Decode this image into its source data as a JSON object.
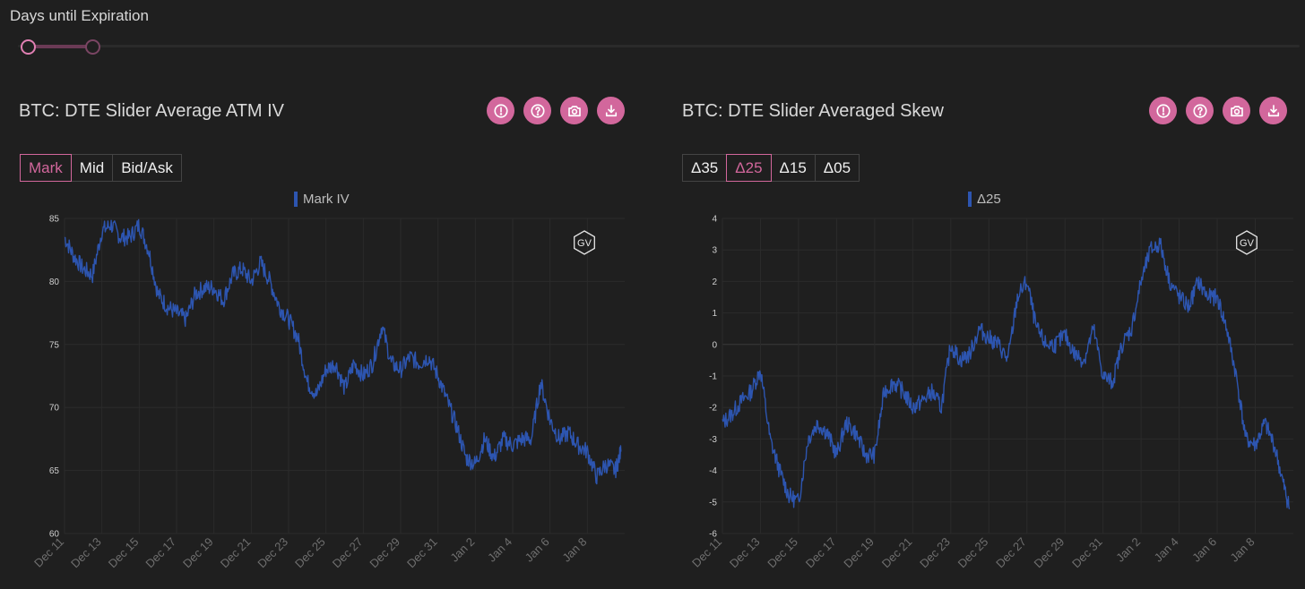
{
  "slider": {
    "label": "Days until Expiration"
  },
  "theme": {
    "accent": "#d2679c",
    "series_color": "#2d55b0",
    "background": "#1f1f1f"
  },
  "tool_icons": [
    "alert-icon",
    "help-icon",
    "camera-icon",
    "download-icon"
  ],
  "left_panel": {
    "title": "BTC: DTE Slider Average ATM IV",
    "buttons": [
      "Mark",
      "Mid",
      "Bid/Ask"
    ],
    "active_button": "Mark",
    "legend": "Mark IV",
    "watermark": "GV"
  },
  "right_panel": {
    "title": "BTC: DTE Slider Averaged Skew",
    "buttons": [
      "Δ35",
      "Δ25",
      "Δ15",
      "Δ05"
    ],
    "active_button": "Δ25",
    "legend": "Δ25",
    "watermark": "GV"
  },
  "chart_data": [
    {
      "type": "line",
      "title": "",
      "xlabel": "",
      "ylabel": "",
      "x_ticks": [
        "Dec 11",
        "Dec 13",
        "Dec 15",
        "Dec 17",
        "Dec 19",
        "Dec 21",
        "Dec 23",
        "Dec 25",
        "Dec 27",
        "Dec 29",
        "Dec 31",
        "Jan 2",
        "Jan 4",
        "Jan 6",
        "Jan 8"
      ],
      "y_ticks": [
        85,
        80,
        75,
        70,
        65,
        60
      ],
      "ylim": [
        60,
        85
      ],
      "grid": true,
      "legend_placement": "top-center",
      "series": [
        {
          "name": "Mark IV",
          "x": [
            0,
            0.5,
            1,
            1.5,
            2,
            2.5,
            3,
            3.5,
            4,
            4.5,
            5,
            5.5,
            6,
            6.5,
            7,
            7.5,
            8,
            8.5,
            9,
            9.5,
            10,
            10.5,
            11,
            11.5,
            12,
            12.5,
            13,
            13.5,
            14,
            14.5,
            15,
            15.5,
            16,
            16.5,
            17,
            17.5,
            18,
            18.5,
            19,
            19.5,
            20,
            20.5,
            21,
            21.5,
            22,
            22.5,
            23,
            23.5,
            24,
            24.5,
            25,
            25.5,
            26,
            26.5,
            27,
            27.5,
            28,
            28.5,
            29,
            29.5,
            29.8
          ],
          "values": [
            83.5,
            82,
            81,
            80.5,
            84,
            84.5,
            83.5,
            83.5,
            84.5,
            82.5,
            79,
            78,
            77.5,
            77,
            79,
            79.5,
            79.5,
            78.5,
            80.5,
            81,
            80,
            81.5,
            80,
            78,
            77,
            75.5,
            72,
            71,
            73,
            73.5,
            71.5,
            73.5,
            72.5,
            73.5,
            76.5,
            73.5,
            73,
            74,
            73.5,
            74,
            72.5,
            70.5,
            68.5,
            66,
            65.5,
            67.5,
            66,
            67.5,
            67,
            67.5,
            67.5,
            72,
            69,
            67.5,
            68,
            67,
            66.5,
            64.5,
            65.5,
            65,
            66.5
          ]
        }
      ]
    },
    {
      "type": "line",
      "title": "",
      "xlabel": "",
      "ylabel": "",
      "x_ticks": [
        "Dec 11",
        "Dec 13",
        "Dec 15",
        "Dec 17",
        "Dec 19",
        "Dec 21",
        "Dec 23",
        "Dec 25",
        "Dec 27",
        "Dec 29",
        "Dec 31",
        "Jan 2",
        "Jan 4",
        "Jan 6",
        "Jan 8"
      ],
      "y_ticks": [
        4,
        3,
        2,
        1,
        0,
        -1,
        -2,
        -3,
        -4,
        -5,
        -6
      ],
      "ylim": [
        -6,
        4
      ],
      "grid": true,
      "legend_placement": "top-center",
      "series": [
        {
          "name": "Δ25",
          "x": [
            0,
            0.5,
            1,
            1.5,
            2,
            2.5,
            3,
            3.5,
            4,
            4.5,
            5,
            5.5,
            6,
            6.5,
            7,
            7.5,
            8,
            8.5,
            9,
            9.5,
            10,
            10.5,
            11,
            11.5,
            12,
            12.5,
            13,
            13.5,
            14,
            14.5,
            15,
            15.5,
            16,
            16.5,
            17,
            17.5,
            18,
            18.5,
            19,
            19.5,
            20,
            20.5,
            21,
            21.5,
            22,
            22.5,
            23,
            23.5,
            24,
            24.5,
            25,
            25.5,
            26,
            26.5,
            27,
            27.5,
            28,
            28.5,
            29,
            29.5,
            29.8
          ],
          "values": [
            -2.5,
            -2.2,
            -1.8,
            -1.5,
            -0.8,
            -3,
            -4,
            -4.8,
            -5,
            -3,
            -2.5,
            -2.8,
            -3.5,
            -2.5,
            -2.8,
            -3.5,
            -3.5,
            -1.5,
            -1.2,
            -1.5,
            -2,
            -1.8,
            -1.5,
            -2,
            0,
            -0.5,
            -0.3,
            0.5,
            0.2,
            0,
            -0.5,
            1.5,
            2,
            0.5,
            0,
            0,
            0.3,
            -0.3,
            -0.5,
            0.5,
            -1,
            -1.2,
            0,
            0.5,
            2,
            3,
            3.2,
            2,
            1.5,
            1.2,
            2,
            1.5,
            1.5,
            0.5,
            -1,
            -3,
            -3.2,
            -2.5,
            -3.2,
            -4.5,
            -5.2
          ]
        }
      ]
    }
  ]
}
